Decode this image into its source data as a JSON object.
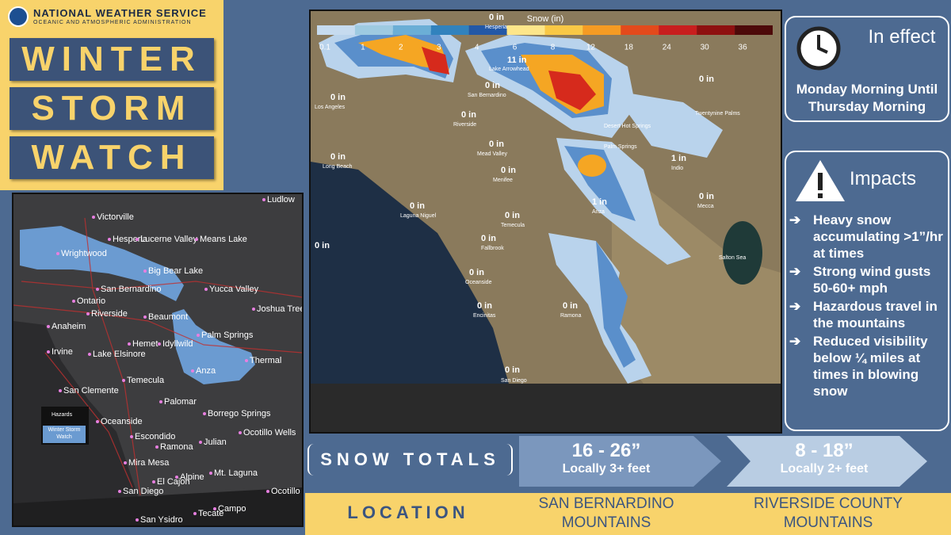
{
  "header": {
    "agency": "NATIONAL WEATHER SERVICE",
    "subagency": "OCEANIC AND ATMOSPHERIC ADMINISTRATION"
  },
  "title": [
    "WINTER",
    "STORM",
    "WATCH"
  ],
  "hazard_map": {
    "places": [
      "Ludlow",
      "Victorville",
      "Hesperia",
      "Lucerne Valley",
      "Means Lake",
      "Wrightwood",
      "Big Bear Lake",
      "San Bernardino",
      "Yucca Valley",
      "Ontario",
      "Joshua Tree",
      "Riverside",
      "Beaumont",
      "Anaheim",
      "Palm Springs",
      "Hemet",
      "Idyllwild",
      "Irvine",
      "Lake Elsinore",
      "Thermal",
      "Anza",
      "Temecula",
      "San Clemente",
      "Palomar",
      "Borrego Springs",
      "Oceanside",
      "Escondido",
      "Ocotillo Wells",
      "Julian",
      "Ramona",
      "Mira Mesa",
      "Alpine",
      "El Cajon",
      "Mt. Laguna",
      "San Diego",
      "Ocotillo",
      "Campo",
      "Tecate",
      "San Ysidro"
    ],
    "legend": {
      "title": "Hazards",
      "item": "Winter Storm Watch"
    }
  },
  "snow_map": {
    "places": [
      "Hesperia",
      "Lake Arrowhead",
      "San Bernardino",
      "Los Angeles",
      "Riverside",
      "Mead Valley",
      "Long Beach",
      "Menifee",
      "Laguna Niguel",
      "Temecula",
      "Fallbrook",
      "Oceanside",
      "Encinitas",
      "Ramona",
      "San Diego",
      "Desert Hot Springs",
      "Palm Springs",
      "Twentynine Palms",
      "Anza",
      "Indio",
      "Mecca",
      "Salton Sea"
    ],
    "amounts": [
      "0 in",
      "11 in",
      "0 in",
      "0 in",
      "0 in",
      "0 in",
      "0 in",
      "0 in",
      "0 in",
      "0 in",
      "0 in",
      "0 in",
      "0 in",
      "0 in",
      "0 in",
      "0 in",
      "1 in",
      "1 in",
      "0 in",
      "0 in"
    ],
    "legend": {
      "title": "Snow (in)",
      "ticks": [
        "0.1",
        "1",
        "2",
        "3",
        "4",
        "6",
        "8",
        "12",
        "18",
        "24",
        "30",
        "36"
      ]
    }
  },
  "in_effect": {
    "heading": "In effect",
    "period": "Monday Morning Until Thursday Morning"
  },
  "impacts": {
    "heading": "Impacts",
    "items": [
      "Heavy snow accumulating >1”/hr at times",
      "Strong wind gusts 50-60+ mph",
      "Hazardous travel in the mountains",
      "Reduced visibility below ¼ miles at times in blowing snow"
    ]
  },
  "snow_totals": {
    "label": "SNOW TOTALS",
    "location_label": "LOCATION",
    "zones": [
      {
        "amount": "16 - 26”",
        "note": "Locally 3+ feet",
        "location": "SAN BERNARDINO MOUNTAINS"
      },
      {
        "amount": "8 - 18”",
        "note": "Locally 2+ feet",
        "location": "RIVERSIDE COUNTY MOUNTAINS"
      }
    ]
  }
}
